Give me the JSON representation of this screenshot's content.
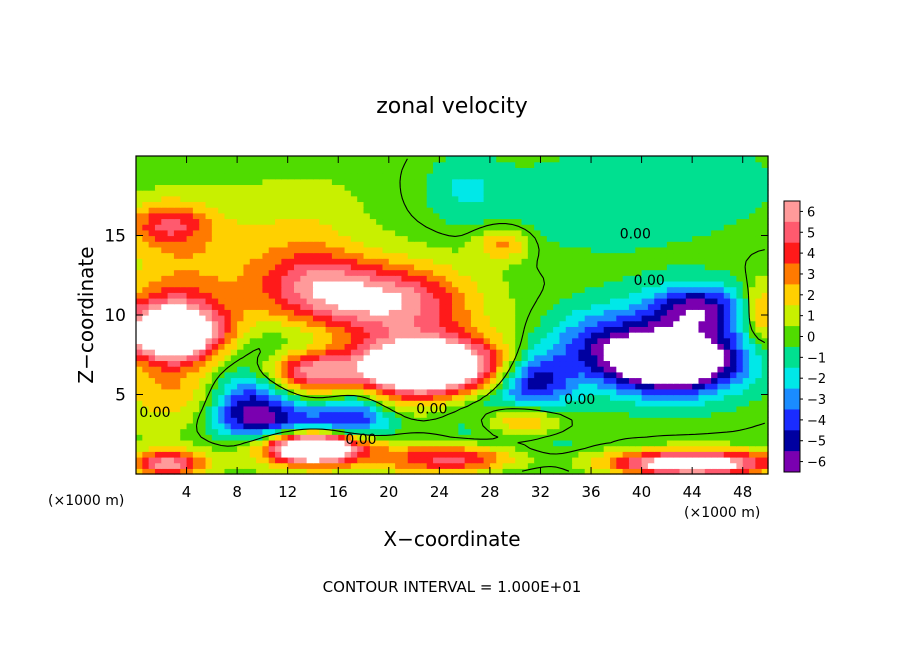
{
  "chart_data": {
    "type": "heatmap",
    "title": "zonal velocity",
    "xlabel": "X−coordinate",
    "ylabel": "Z−coordinate",
    "x_unit_label_left": "(×1000 m)",
    "x_unit_label_right": "(×1000 m)",
    "xlim": [
      0,
      50
    ],
    "ylim": [
      0,
      20
    ],
    "x_ticks": [
      4,
      8,
      12,
      16,
      20,
      24,
      28,
      32,
      36,
      40,
      44,
      48
    ],
    "x_tick_labels": [
      "4",
      "8",
      "12",
      "16",
      "20",
      "24",
      "28",
      "32",
      "36",
      "40",
      "44",
      "48"
    ],
    "y_ticks": [
      5,
      10,
      15
    ],
    "y_tick_labels": [
      "5",
      "10",
      "15"
    ],
    "colorbar": {
      "levels": [
        6,
        5,
        4,
        3,
        2,
        1,
        0,
        -1,
        -2,
        -3,
        -4,
        -5,
        -6
      ],
      "labels": [
        "6",
        "5",
        "4",
        "3",
        "2",
        "1",
        "0",
        "−1",
        "−2",
        "−3",
        "−4",
        "−5",
        "−6"
      ],
      "colors": [
        "#ff9a9a",
        "#ff5a6e",
        "#ff1a1a",
        "#ff7a00",
        "#ffd000",
        "#c8f000",
        "#50dc00",
        "#00e090",
        "#00e8e8",
        "#1a8cff",
        "#1a2cff",
        "#0000a0",
        "#7a00b0"
      ]
    },
    "contour_labels": [
      {
        "text": "0.00",
        "x": 39.5,
        "z": 14.8
      },
      {
        "text": "0.00",
        "x": 40.6,
        "z": 11.9
      },
      {
        "text": "0.00",
        "x": 1.5,
        "z": 3.6
      },
      {
        "text": "0.00",
        "x": 23.4,
        "z": 3.8
      },
      {
        "text": "0.00",
        "x": 35.1,
        "z": 4.4
      },
      {
        "text": "0.00",
        "x": 17.8,
        "z": 1.9
      }
    ],
    "blobs": [
      {
        "v": 0.2,
        "x": 25,
        "z": 10,
        "rx": 40,
        "rz": 14
      },
      {
        "v": -0.8,
        "x": 44,
        "z": 18.5,
        "rx": 9,
        "rz": 3
      },
      {
        "v": -1.2,
        "x": 36,
        "z": 16.8,
        "rx": 10,
        "rz": 3.2
      },
      {
        "v": 2.0,
        "x": 4,
        "z": 14,
        "rx": 5,
        "rz": 3
      },
      {
        "v": 3.5,
        "x": 2.5,
        "z": 15.8,
        "rx": 3,
        "rz": 1.3
      },
      {
        "v": 1.2,
        "x": 13,
        "z": 15.5,
        "rx": 5,
        "rz": 3
      },
      {
        "v": 3.8,
        "x": 14,
        "z": 12.2,
        "rx": 5,
        "rz": 2.2
      },
      {
        "v": 4.2,
        "x": 18,
        "z": 10.8,
        "rx": 6.5,
        "rz": 2.0
      },
      {
        "v": 2.5,
        "x": 22,
        "z": 11,
        "rx": 5,
        "rz": 2.5
      },
      {
        "v": 5.5,
        "x": 3,
        "z": 9.8,
        "rx": 4.5,
        "rz": 2.0
      },
      {
        "v": 2.5,
        "x": 3,
        "z": 5.5,
        "rx": 4,
        "rz": 2.5
      },
      {
        "v": 7.0,
        "x": 3,
        "z": 8.6,
        "rx": 3.6,
        "rz": 1.5
      },
      {
        "v": -3.0,
        "x": 12,
        "z": 6.2,
        "rx": 5.5,
        "rz": 2.6
      },
      {
        "v": -4.5,
        "x": 9,
        "z": 4.0,
        "rx": 3,
        "rz": 1.8
      },
      {
        "v": 7.5,
        "x": 13.5,
        "z": 6.4,
        "rx": 3.6,
        "rz": 1.4
      },
      {
        "v": 4.5,
        "x": 22.5,
        "z": 6.6,
        "rx": 6.5,
        "rz": 2.5
      },
      {
        "v": 8.0,
        "x": 23,
        "z": 6.8,
        "rx": 5.5,
        "rz": 1.6
      },
      {
        "v": -3.0,
        "x": 17.5,
        "z": 4.0,
        "rx": 2.5,
        "rz": 1.6
      },
      {
        "v": -2.5,
        "x": 28,
        "z": 4.5,
        "rx": 5,
        "rz": 1.5
      },
      {
        "v": 4.0,
        "x": 30.5,
        "z": 3.4,
        "rx": 3,
        "rz": 1.2
      },
      {
        "v": 5.0,
        "x": 14,
        "z": 1.7,
        "rx": 4.5,
        "rz": 1.2
      },
      {
        "v": 7.2,
        "x": 14,
        "z": 1.7,
        "rx": 3.2,
        "rz": 0.9
      },
      {
        "v": -3.5,
        "x": 14,
        "z": 3.2,
        "rx": 6,
        "rz": 1.0
      },
      {
        "v": 7.0,
        "x": 26,
        "z": 1.0,
        "rx": 6,
        "rz": 1.0
      },
      {
        "v": -3.5,
        "x": 29,
        "z": 1.2,
        "rx": 6,
        "rz": 1.6
      },
      {
        "v": 6.0,
        "x": 2.5,
        "z": 0.7,
        "rx": 3,
        "rz": 0.8
      },
      {
        "v": 7.0,
        "x": 44,
        "z": 0.5,
        "rx": 6,
        "rz": 0.6
      },
      {
        "v": 4.0,
        "x": 44,
        "z": 1.1,
        "rx": 7,
        "rz": 0.6
      },
      {
        "v": -5.0,
        "x": 31.5,
        "z": 6.0,
        "rx": 3,
        "rz": 1.8
      },
      {
        "v": -2.5,
        "x": 36.5,
        "z": 8.2,
        "rx": 4,
        "rz": 2.0
      },
      {
        "v": -4.5,
        "x": 42,
        "z": 8.0,
        "rx": 7,
        "rz": 3.0
      },
      {
        "v": -4.5,
        "x": 44.5,
        "z": 10.5,
        "rx": 3.5,
        "rz": 1.5
      },
      {
        "v": -8.0,
        "x": 42.5,
        "z": 7.0,
        "rx": 4.6,
        "rz": 1.7
      },
      {
        "v": 3.5,
        "x": 49.5,
        "z": 10,
        "rx": 1.5,
        "rz": 2
      },
      {
        "v": 3.0,
        "x": 29,
        "z": 14.5,
        "rx": 2,
        "rz": 1
      },
      {
        "v": -1.5,
        "x": 26,
        "z": 18,
        "rx": 3,
        "rz": 2
      }
    ]
  }
}
